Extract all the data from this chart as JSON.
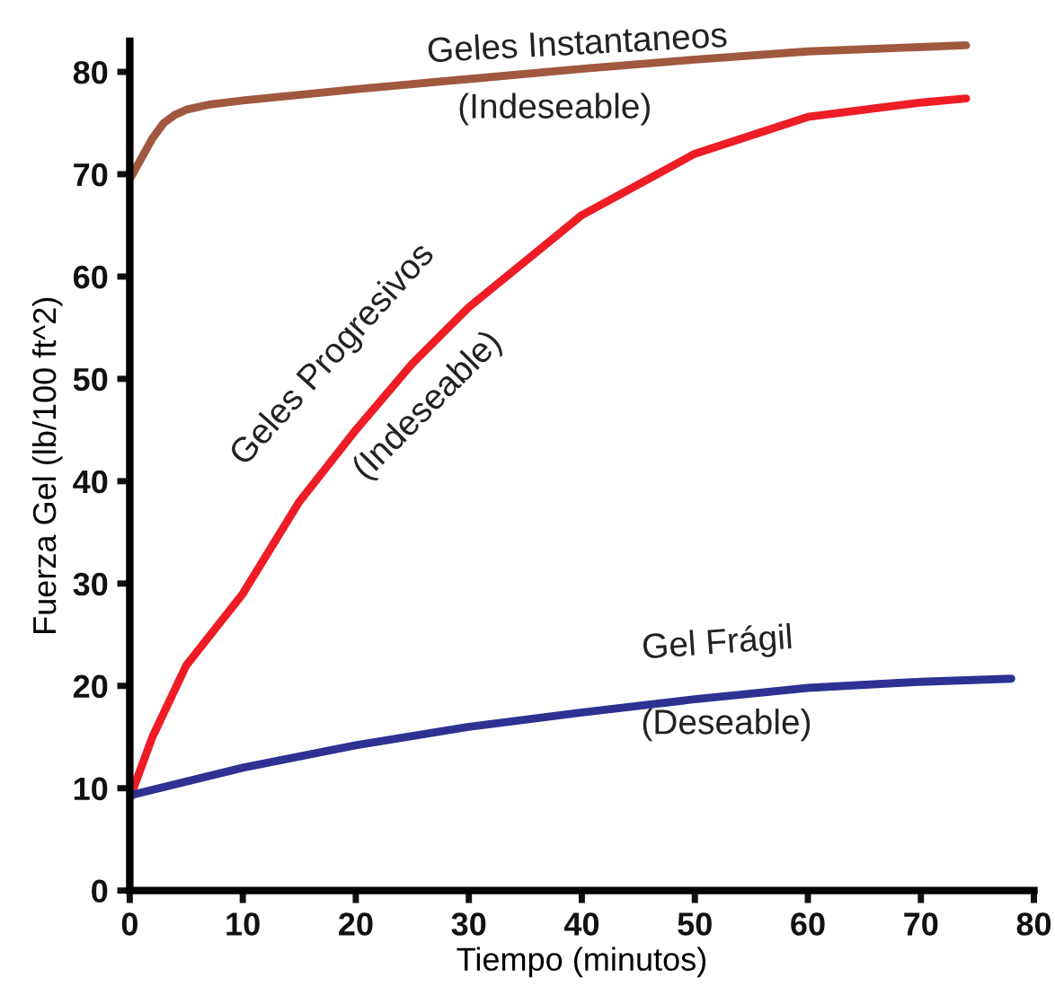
{
  "chart_data": {
    "type": "line",
    "xlabel": "Tiempo (minutos)",
    "ylabel": "Fuerza Gel (lb/100 ft^2)",
    "xlim": [
      0,
      80
    ],
    "ylim": [
      0,
      83
    ],
    "xticks": [
      0,
      10,
      20,
      30,
      40,
      50,
      60,
      70,
      80
    ],
    "yticks": [
      0,
      10,
      20,
      30,
      40,
      50,
      60,
      70,
      80
    ],
    "grid": false,
    "legend": false,
    "marker": "none",
    "line_style": "solid",
    "series": [
      {
        "color": "#a0583f",
        "x": [
          0,
          1,
          2,
          3,
          4,
          5,
          7,
          10,
          20,
          30,
          40,
          50,
          60,
          74
        ],
        "values": [
          69.5,
          71.5,
          73.5,
          75,
          75.8,
          76.3,
          76.8,
          77.2,
          78.3,
          79.3,
          80.3,
          81.2,
          82,
          82.6
        ]
      },
      {
        "color": "#ee1c25",
        "x": [
          0,
          2,
          5,
          10,
          15,
          20,
          25,
          30,
          40,
          50,
          60,
          70,
          74
        ],
        "values": [
          9,
          15,
          22,
          29,
          38,
          45,
          51.5,
          57,
          66,
          72,
          75.6,
          77,
          77.4
        ]
      },
      {
        "color": "#2e3192",
        "x": [
          0,
          10,
          20,
          30,
          40,
          50,
          60,
          70,
          78
        ],
        "values": [
          9.3,
          12,
          14.2,
          16,
          17.4,
          18.7,
          19.8,
          20.4,
          20.7
        ]
      }
    ],
    "annotations": [
      "Geles Instantaneos",
      "(Indeseable)",
      "Geles Progresivos",
      "(Indeseable)",
      "Gel Frágil",
      "(Deseable)"
    ]
  }
}
